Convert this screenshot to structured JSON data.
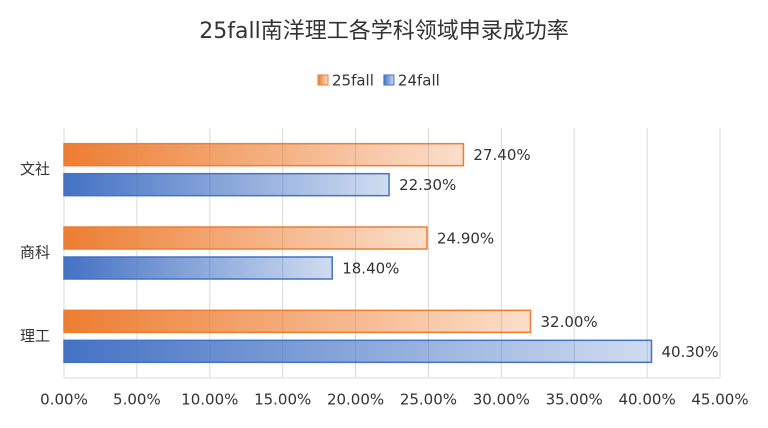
{
  "chart_data": {
    "type": "bar",
    "orientation": "horizontal",
    "title": "25fall南洋理工各学科领域申录成功率",
    "categories": [
      "文社",
      "商科",
      "理工"
    ],
    "series": [
      {
        "name": "25fall",
        "color": "#ed7d31",
        "values": [
          27.4,
          24.9,
          32.0
        ],
        "value_labels": [
          "27.40%",
          "24.90%",
          "32.00%"
        ]
      },
      {
        "name": "24fall",
        "color": "#4472c4",
        "values": [
          22.3,
          18.4,
          40.3
        ],
        "value_labels": [
          "22.30%",
          "18.40%",
          "40.30%"
        ]
      }
    ],
    "xlim": [
      0,
      45
    ],
    "xticks": [
      {
        "value": 0,
        "label": "0.00%"
      },
      {
        "value": 5,
        "label": "5.00%"
      },
      {
        "value": 10,
        "label": "10.00%"
      },
      {
        "value": 15,
        "label": "15.00%"
      },
      {
        "value": 20,
        "label": "20.00%"
      },
      {
        "value": 25,
        "label": "25.00%"
      },
      {
        "value": 30,
        "label": "30.00%"
      },
      {
        "value": 35,
        "label": "35.00%"
      },
      {
        "value": 40,
        "label": "40.00%"
      },
      {
        "value": 45,
        "label": "45.00%"
      }
    ],
    "grid": true,
    "legend": "top"
  }
}
